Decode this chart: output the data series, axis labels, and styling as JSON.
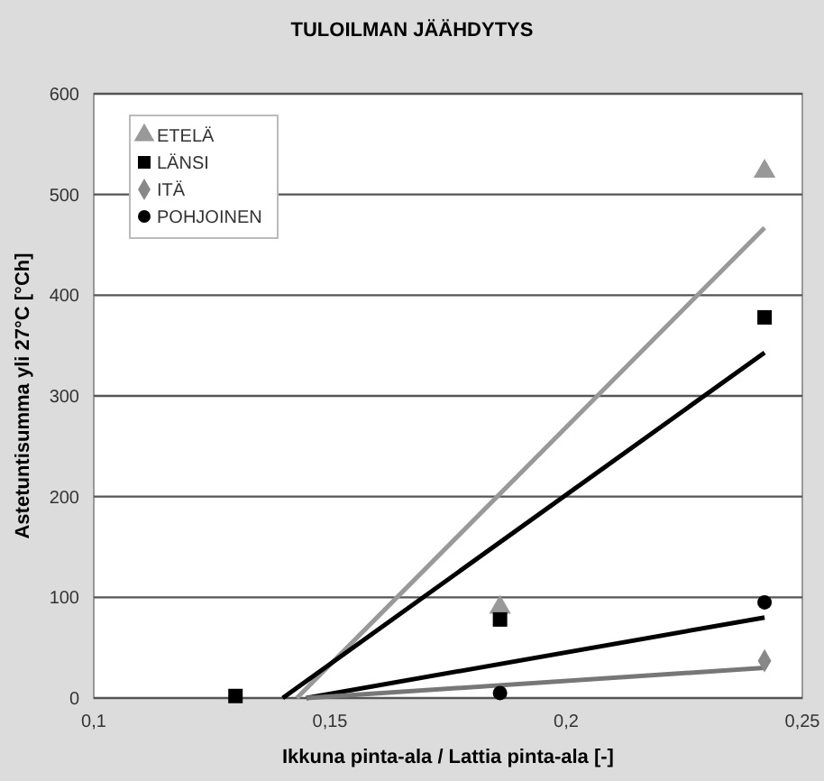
{
  "chart_data": {
    "type": "scatter",
    "title": "TULOILMAN JÄÄHDYTYS",
    "xlabel": "Ikkuna pinta-ala / Lattia pinta-ala [-]",
    "ylabel": "Astetuntisumma yli 27°C [°Ch]",
    "xlim": [
      0.1,
      0.25
    ],
    "xticks": [
      {
        "value": 0.1,
        "label": "0,1"
      },
      {
        "value": 0.15,
        "label": "0,15"
      },
      {
        "value": 0.2,
        "label": "0,2"
      },
      {
        "value": 0.25,
        "label": "0,25"
      }
    ],
    "ylim": [
      0,
      600
    ],
    "yticks": [
      0,
      100,
      200,
      300,
      400,
      500,
      600
    ],
    "grid": "y",
    "legend": "top left",
    "series": [
      {
        "name": "ETELÄ",
        "color": "#999999",
        "marker": "triangle",
        "x": [
          0.186,
          0.242
        ],
        "values": [
          90,
          523
        ]
      },
      {
        "name": "LÄNSI",
        "color": "#000000",
        "marker": "square",
        "x": [
          0.13,
          0.186,
          0.242
        ],
        "values": [
          2,
          78,
          378
        ]
      },
      {
        "name": "ITÄ",
        "color": "#888888",
        "marker": "diamond",
        "x": [
          0.242
        ],
        "values": [
          37
        ]
      },
      {
        "name": "POHJOINEN",
        "color": "#000000",
        "marker": "circle",
        "x": [
          0.186,
          0.242
        ],
        "values": [
          5,
          95
        ]
      },
      {
        "type": "line",
        "color": "#999999",
        "x": [
          0.143,
          0.242
        ],
        "values": [
          0,
          467
        ]
      },
      {
        "type": "line",
        "color": "#000000",
        "x": [
          0.14,
          0.242
        ],
        "values": [
          0,
          343
        ]
      },
      {
        "type": "line",
        "color": "#000000",
        "x": [
          0.145,
          0.242
        ],
        "values": [
          0,
          80
        ]
      },
      {
        "type": "line",
        "color": "#777777",
        "x": [
          0.145,
          0.242
        ],
        "values": [
          0,
          30
        ]
      }
    ]
  }
}
